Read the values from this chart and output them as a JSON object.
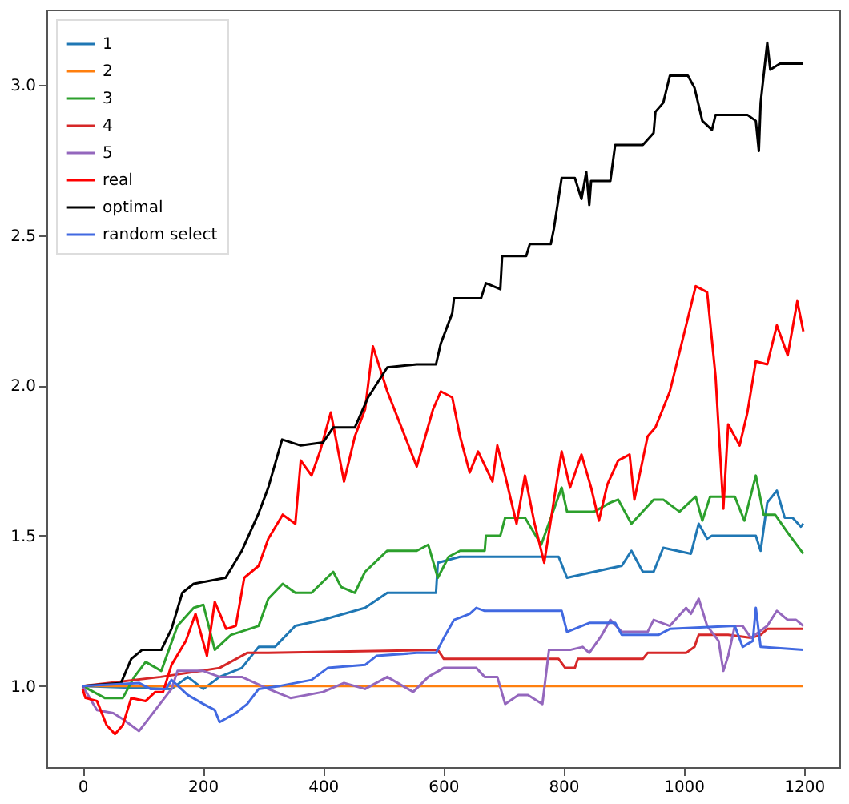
{
  "chart_data": {
    "type": "line",
    "xlim": [
      -60,
      1259
    ],
    "ylim": [
      0.73,
      3.25
    ],
    "xticks": [
      0,
      200,
      400,
      600,
      800,
      1000,
      1200
    ],
    "yticks": [
      {
        "value": 1,
        "label": "1.0"
      },
      {
        "value": 1.5,
        "label": "1.5"
      },
      {
        "value": 2,
        "label": "2.0"
      },
      {
        "value": 2.5,
        "label": "2.5"
      },
      {
        "value": 3,
        "label": "3.0"
      }
    ],
    "legend": "top left",
    "grid": false,
    "series": [
      {
        "name": "1",
        "color": "#1f77b4",
        "x": [
          0,
          148,
          175,
          201,
          228,
          265,
          293,
          320,
          354,
          400,
          435,
          470,
          507,
          588,
          591,
          628,
          792,
          806,
          851,
          897,
          913,
          932,
          950,
          966,
          1012,
          1025,
          1039,
          1047,
          1120,
          1128,
          1139,
          1155,
          1168,
          1181,
          1195,
          1199
        ],
        "values": [
          1.0,
          0.99,
          1.03,
          0.99,
          1.03,
          1.06,
          1.13,
          1.13,
          1.2,
          1.22,
          1.24,
          1.26,
          1.31,
          1.31,
          1.41,
          1.43,
          1.43,
          1.36,
          1.38,
          1.4,
          1.45,
          1.38,
          1.38,
          1.46,
          1.44,
          1.54,
          1.49,
          1.5,
          1.5,
          1.45,
          1.61,
          1.65,
          1.56,
          1.56,
          1.53,
          1.54
        ]
      },
      {
        "name": "2",
        "color": "#ff7f0e",
        "x": [
          0,
          1199
        ],
        "values": [
          1.0,
          1.0
        ]
      },
      {
        "name": "3",
        "color": "#2ca02c",
        "x": [
          0,
          37,
          67,
          86,
          105,
          131,
          158,
          185,
          201,
          220,
          247,
          293,
          309,
          333,
          354,
          381,
          417,
          430,
          453,
          470,
          507,
          556,
          575,
          591,
          609,
          628,
          669,
          671,
          695,
          703,
          736,
          763,
          797,
          806,
          851,
          878,
          891,
          913,
          950,
          966,
          993,
          1020,
          1031,
          1044,
          1085,
          1101,
          1120,
          1133,
          1152,
          1173,
          1199
        ],
        "values": [
          1.0,
          0.96,
          0.96,
          1.03,
          1.08,
          1.05,
          1.2,
          1.26,
          1.27,
          1.12,
          1.17,
          1.2,
          1.29,
          1.34,
          1.31,
          1.31,
          1.38,
          1.33,
          1.31,
          1.38,
          1.45,
          1.45,
          1.47,
          1.36,
          1.43,
          1.45,
          1.45,
          1.5,
          1.5,
          1.56,
          1.56,
          1.47,
          1.66,
          1.58,
          1.58,
          1.61,
          1.62,
          1.54,
          1.62,
          1.62,
          1.58,
          1.63,
          1.55,
          1.63,
          1.63,
          1.55,
          1.7,
          1.57,
          1.57,
          1.51,
          1.44
        ]
      },
      {
        "name": "4",
        "color": "#d62728",
        "x": [
          0,
          130,
          228,
          274,
          309,
          591,
          601,
          792,
          803,
          819,
          824,
          932,
          940,
          1004,
          1018,
          1025,
          1074,
          1112,
          1128,
          1139,
          1199
        ],
        "values": [
          1.0,
          1.03,
          1.06,
          1.11,
          1.11,
          1.12,
          1.09,
          1.09,
          1.06,
          1.06,
          1.09,
          1.09,
          1.11,
          1.11,
          1.13,
          1.17,
          1.17,
          1.16,
          1.17,
          1.19,
          1.19
        ]
      },
      {
        "name": "5",
        "color": "#9467bd",
        "x": [
          0,
          24,
          51,
          67,
          94,
          121,
          148,
          158,
          201,
          228,
          265,
          309,
          346,
          400,
          435,
          470,
          507,
          550,
          575,
          601,
          655,
          669,
          690,
          703,
          725,
          741,
          765,
          776,
          789,
          811,
          832,
          843,
          864,
          878,
          897,
          940,
          950,
          977,
          1004,
          1012,
          1025,
          1039,
          1058,
          1066,
          1074,
          1085,
          1098,
          1112,
          1139,
          1155,
          1173,
          1187,
          1199
        ],
        "values": [
          1.0,
          0.92,
          0.91,
          0.89,
          0.85,
          0.92,
          0.99,
          1.05,
          1.05,
          1.03,
          1.03,
          0.99,
          0.96,
          0.98,
          1.01,
          0.99,
          1.03,
          0.98,
          1.03,
          1.06,
          1.06,
          1.03,
          1.03,
          0.94,
          0.97,
          0.97,
          0.94,
          1.12,
          1.12,
          1.12,
          1.13,
          1.11,
          1.17,
          1.22,
          1.18,
          1.18,
          1.22,
          1.2,
          1.26,
          1.24,
          1.29,
          1.2,
          1.15,
          1.05,
          1.1,
          1.2,
          1.2,
          1.16,
          1.2,
          1.25,
          1.22,
          1.22,
          1.2
        ]
      },
      {
        "name": "real",
        "color": "#ff0000",
        "x": [
          0,
          5,
          24,
          40,
          54,
          67,
          81,
          105,
          121,
          134,
          148,
          172,
          188,
          207,
          220,
          239,
          255,
          269,
          293,
          309,
          333,
          354,
          363,
          381,
          395,
          413,
          435,
          453,
          470,
          483,
          507,
          556,
          583,
          596,
          615,
          628,
          644,
          658,
          682,
          690,
          703,
          722,
          736,
          752,
          768,
          789,
          797,
          811,
          830,
          846,
          859,
          873,
          891,
          910,
          918,
          940,
          953,
          977,
          1020,
          1039,
          1053,
          1066,
          1074,
          1093,
          1106,
          1120,
          1139,
          1155,
          1173,
          1189,
          1199
        ],
        "values": [
          0.99,
          0.96,
          0.95,
          0.87,
          0.84,
          0.87,
          0.96,
          0.95,
          0.98,
          0.98,
          1.07,
          1.15,
          1.24,
          1.1,
          1.28,
          1.19,
          1.2,
          1.36,
          1.4,
          1.49,
          1.57,
          1.54,
          1.75,
          1.7,
          1.78,
          1.91,
          1.68,
          1.83,
          1.92,
          2.13,
          1.98,
          1.73,
          1.92,
          1.98,
          1.96,
          1.83,
          1.71,
          1.78,
          1.68,
          1.8,
          1.7,
          1.54,
          1.7,
          1.54,
          1.41,
          1.68,
          1.78,
          1.66,
          1.77,
          1.66,
          1.55,
          1.67,
          1.75,
          1.77,
          1.62,
          1.83,
          1.86,
          1.98,
          2.33,
          2.31,
          2.03,
          1.59,
          1.87,
          1.8,
          1.91,
          2.08,
          2.07,
          2.2,
          2.1,
          2.28,
          2.18
        ]
      },
      {
        "name": "optimal",
        "color": "#000000",
        "x": [
          0,
          64,
          81,
          99,
          131,
          148,
          166,
          185,
          238,
          265,
          292,
          309,
          332,
          363,
          400,
          417,
          453,
          475,
          507,
          556,
          588,
          596,
          615,
          618,
          663,
          671,
          695,
          698,
          738,
          744,
          779,
          784,
          797,
          819,
          830,
          838,
          843,
          846,
          878,
          886,
          932,
          950,
          953,
          966,
          977,
          1007,
          1018,
          1031,
          1047,
          1053,
          1106,
          1120,
          1125,
          1128,
          1139,
          1144,
          1160,
          1199
        ],
        "values": [
          1.0,
          1.01,
          1.09,
          1.12,
          1.12,
          1.19,
          1.31,
          1.34,
          1.36,
          1.45,
          1.57,
          1.66,
          1.82,
          1.8,
          1.81,
          1.86,
          1.86,
          1.96,
          2.06,
          2.07,
          2.07,
          2.14,
          2.24,
          2.29,
          2.29,
          2.34,
          2.32,
          2.43,
          2.43,
          2.47,
          2.47,
          2.52,
          2.69,
          2.69,
          2.62,
          2.71,
          2.6,
          2.68,
          2.68,
          2.8,
          2.8,
          2.84,
          2.91,
          2.94,
          3.03,
          3.03,
          2.99,
          2.88,
          2.85,
          2.9,
          2.9,
          2.88,
          2.78,
          2.94,
          3.14,
          3.05,
          3.07,
          3.07
        ]
      },
      {
        "name": "random select",
        "color": "#4169e1",
        "x": [
          0,
          94,
          113,
          139,
          148,
          175,
          201,
          220,
          228,
          255,
          274,
          293,
          328,
          381,
          408,
          470,
          489,
          556,
          588,
          601,
          618,
          644,
          655,
          669,
          797,
          806,
          843,
          886,
          897,
          958,
          977,
          1085,
          1098,
          1115,
          1120,
          1128,
          1199
        ],
        "values": [
          1.0,
          1.01,
          0.99,
          0.99,
          1.02,
          0.97,
          0.94,
          0.92,
          0.88,
          0.91,
          0.94,
          0.99,
          1.0,
          1.02,
          1.06,
          1.07,
          1.1,
          1.11,
          1.11,
          1.16,
          1.22,
          1.24,
          1.26,
          1.25,
          1.25,
          1.18,
          1.21,
          1.21,
          1.17,
          1.17,
          1.19,
          1.2,
          1.13,
          1.15,
          1.26,
          1.13,
          1.12
        ]
      }
    ]
  }
}
